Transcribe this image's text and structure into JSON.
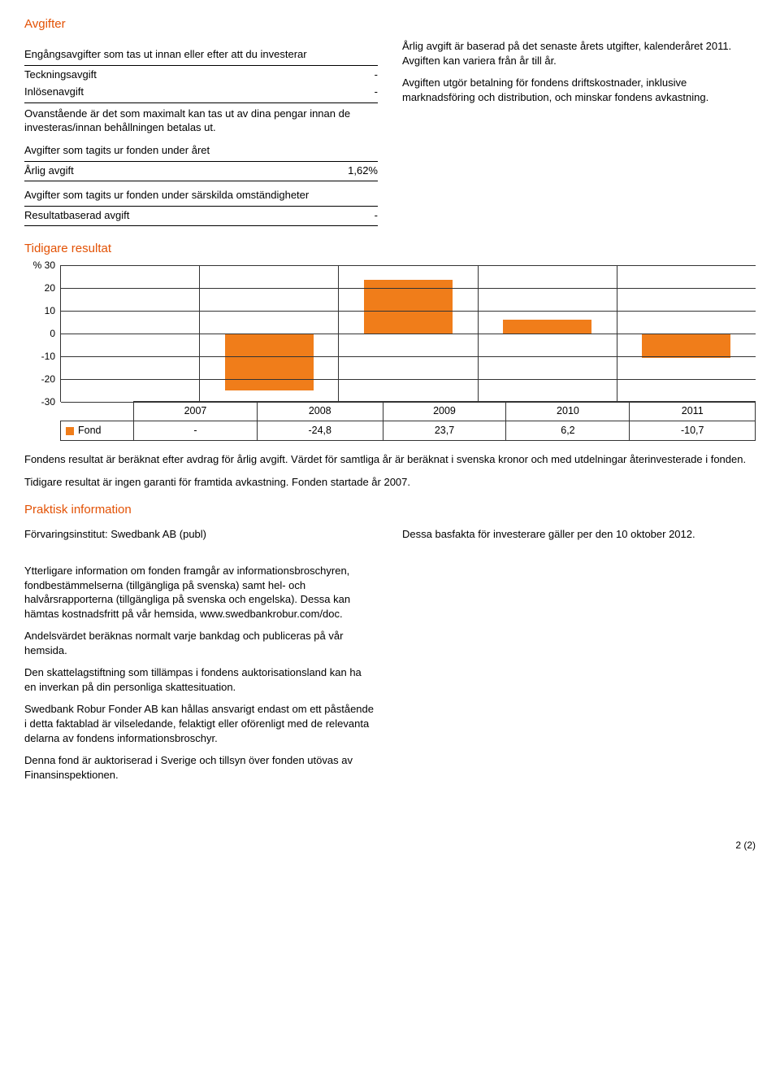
{
  "colors": {
    "accent": "#e35205",
    "bar": "#f07d1a",
    "grid": "#333333",
    "text": "#000000",
    "background": "#ffffff"
  },
  "fees": {
    "heading": "Avgifter",
    "section1": "Engångsavgifter som tas ut innan eller efter att du investerar",
    "rows1": [
      {
        "label": "Teckningsavgift",
        "value": "-"
      },
      {
        "label": "Inlösenavgift",
        "value": "-"
      }
    ],
    "note1": "Ovanstående är det som maximalt kan tas ut av dina pengar innan de investeras/innan behållningen betalas ut.",
    "section2": "Avgifter som tagits ur fonden under året",
    "rows2": [
      {
        "label": "Årlig avgift",
        "value": "1,62%"
      }
    ],
    "section3": "Avgifter som tagits ur fonden under särskilda omständigheter",
    "rows3": [
      {
        "label": "Resultatbaserad avgift",
        "value": "-"
      }
    ]
  },
  "fees_right": {
    "p1": "Årlig avgift är baserad på det senaste årets utgifter, kalenderåret 2011. Avgiften kan variera från år till år.",
    "p2": "Avgiften utgör betalning för fondens driftskostnader, inklusive marknadsföring och distribution, och minskar fondens avkastning."
  },
  "past_results": {
    "heading": "Tidigare resultat",
    "ylabel": "%",
    "ylim": [
      -30,
      30
    ],
    "yticks": [
      30,
      20,
      10,
      0,
      -10,
      -20,
      -30
    ],
    "years": [
      "2007",
      "2008",
      "2009",
      "2010",
      "2011"
    ],
    "row_label": "Fond",
    "values_display": [
      "-",
      "-24,8",
      "23,7",
      "6,2",
      "-10,7"
    ],
    "values_numeric": [
      null,
      -24.8,
      23.7,
      6.2,
      -10.7
    ],
    "bar_color": "#f07d1a",
    "p1": "Fondens resultat är beräknat efter avdrag för årlig avgift. Värdet för samtliga år är beräknat i svenska kronor och med utdelningar återinvesterade i fonden.",
    "p2": "Tidigare resultat är ingen garanti för framtida avkastning. Fonden startade år 2007."
  },
  "practical": {
    "heading": "Praktisk information",
    "left_p1": "Förvaringsinstitut: Swedbank AB (publ)",
    "right_p1": "Dessa basfakta för investerare gäller per den 10 oktober 2012.",
    "p2": "Ytterligare information om fonden framgår av informationsbroschyren, fondbestämmelserna (tillgängliga på svenska) samt hel- och halvårsrapporterna (tillgängliga på svenska och engelska). Dessa kan hämtas kostnadsfritt på vår hemsida, www.swedbankrobur.com/doc.",
    "p3": "Andelsvärdet beräknas normalt varje bankdag och publiceras på vår hemsida.",
    "p4": "Den skattelagstiftning som tillämpas i fondens auktorisationsland kan ha en inverkan på din personliga skattesituation.",
    "p5": "Swedbank Robur Fonder AB kan hållas ansvarigt endast om ett påstående i detta faktablad är vilseledande, felaktigt eller oförenligt med de relevanta delarna av fondens informationsbroschyr.",
    "p6": "Denna fond är auktoriserad i Sverige och tillsyn över fonden utövas av Finansinspektionen."
  },
  "footer": "2 (2)"
}
